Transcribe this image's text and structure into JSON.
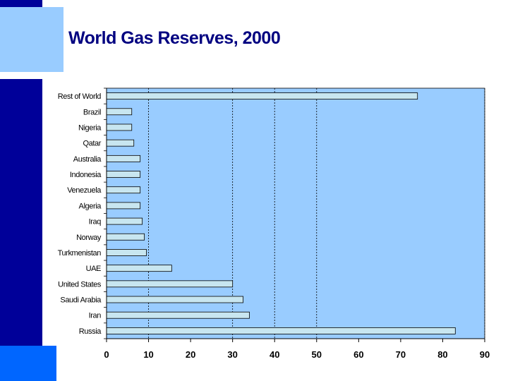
{
  "slide": {
    "title": "World Gas Reserves, 2000"
  },
  "colors": {
    "plot_background": "#99ccff",
    "bar_fill": "#c8e6f0",
    "sidebar_dark": "#000099",
    "sidebar_light": "#99ccff",
    "sidebar_bottom": "#0066ff",
    "title": "#000080"
  },
  "chart_data": {
    "type": "bar",
    "orientation": "horizontal",
    "title": "World Gas Reserves, 2000",
    "xlabel": "",
    "ylabel": "",
    "categories": [
      "Russia",
      "Iran",
      "Saudi Arabia",
      "United States",
      "UAE",
      "Turkmenistan",
      "Norway",
      "Iraq",
      "Algeria",
      "Venezuela",
      "Indonesia",
      "Australia",
      "Qatar",
      "Nigeria",
      "Brazil",
      "Rest of World"
    ],
    "values": [
      83,
      34,
      32.5,
      30,
      15.5,
      9.5,
      9,
      8.5,
      8,
      8,
      8,
      8,
      6.5,
      6,
      6,
      74
    ],
    "xlim": [
      0,
      90
    ],
    "xticks": [
      0,
      10,
      20,
      30,
      40,
      50,
      60,
      70,
      80,
      90
    ],
    "gridlines": [
      10,
      30,
      40,
      50
    ],
    "grid": true,
    "legend": "none"
  }
}
